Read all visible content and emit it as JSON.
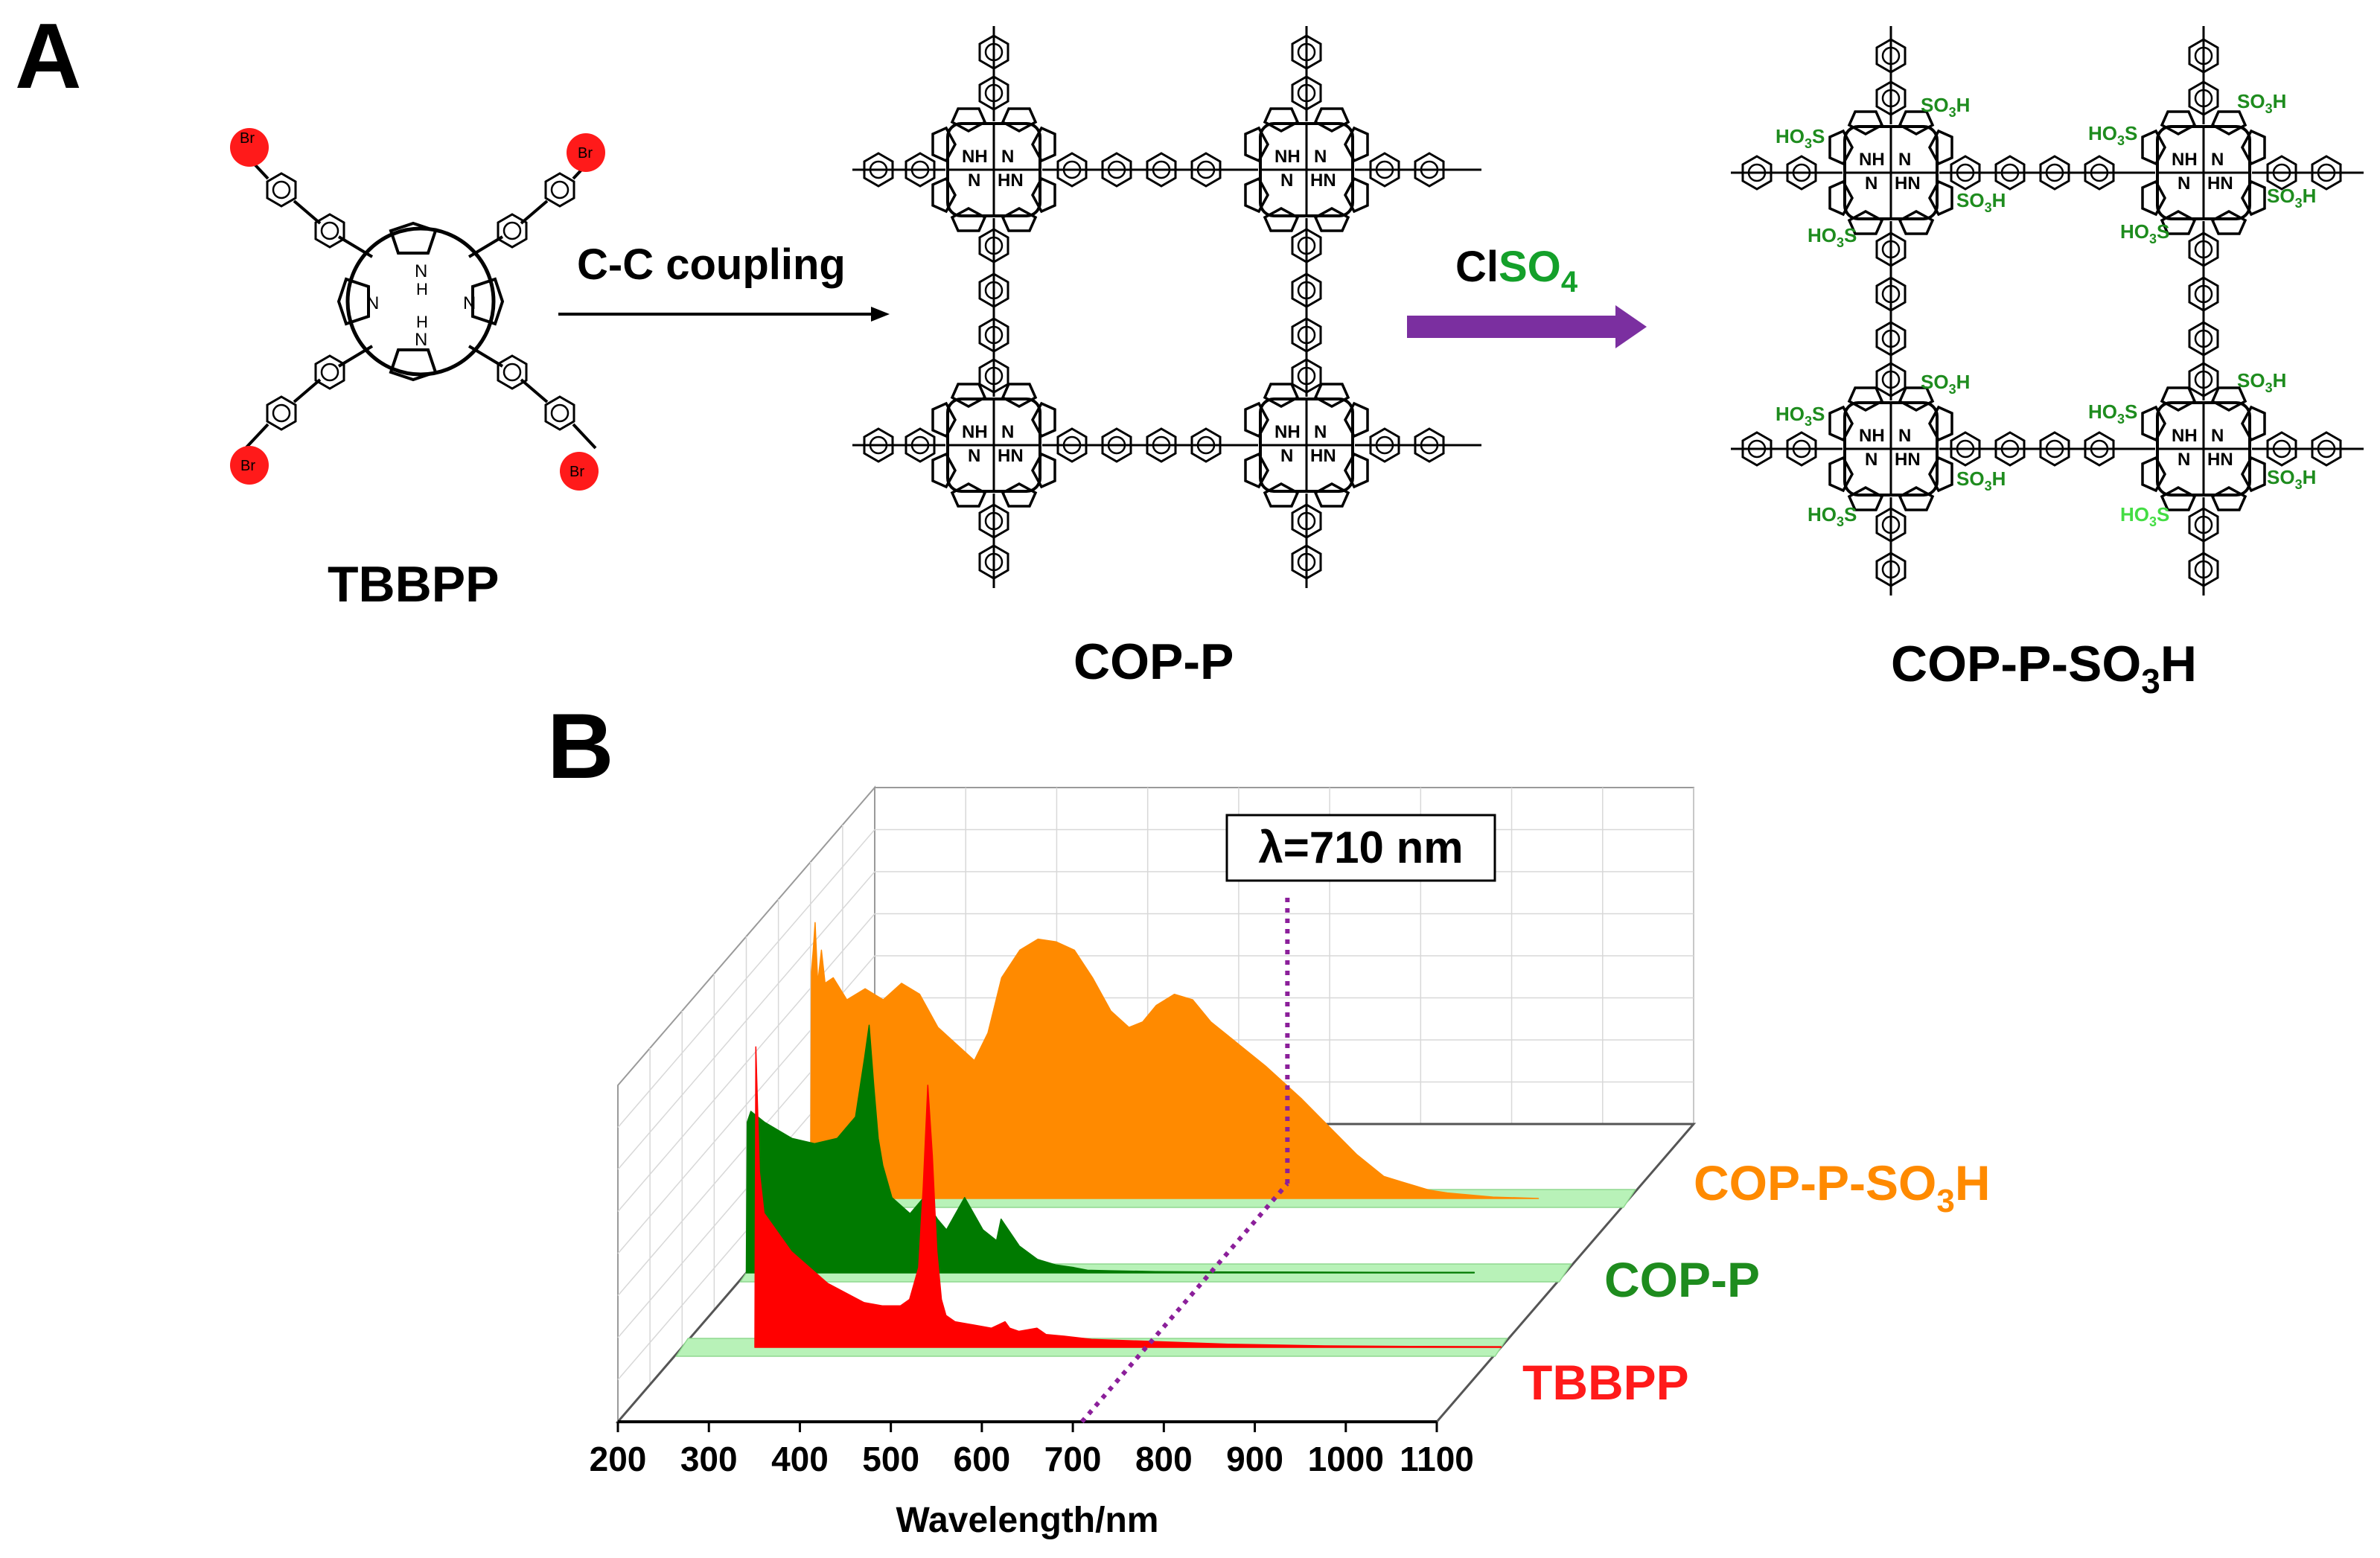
{
  "panel_a": {
    "letter": "A",
    "monomer_name": "TBBPP",
    "step1_label": "C-C coupling",
    "product1_name": "COP-P",
    "reagent_prefix": "Cl",
    "reagent_group": "SO",
    "reagent_subscript": "4",
    "product2_name_prefix": "COP-P-SO",
    "product2_name_sub": "3",
    "product2_name_suffix": "H",
    "atoms": {
      "bromine": "Br",
      "nh": "NH",
      "n": "N",
      "hn": "HN",
      "h": "H",
      "sulfonic_right": "SO",
      "sulfonic_left": "HO",
      "sub3": "3",
      "s": "S"
    }
  },
  "panel_b": {
    "letter": "B",
    "annotation": "λ=710 nm",
    "series_labels": {
      "sulfonated_prefix": "COP-P-SO",
      "sulfonated_sub": "3",
      "sulfonated_suffix": "H",
      "cop": "COP-P",
      "monomer": "TBBPP"
    }
  },
  "chart_data": {
    "type": "area",
    "title": "",
    "xlabel": "Wavelength/nm",
    "ylabel": "",
    "x_ticks": [
      200,
      300,
      400,
      500,
      600,
      700,
      800,
      900,
      1000,
      1100
    ],
    "x_tick_labels": [
      "200",
      "300",
      "400",
      "500",
      "600",
      "700",
      "800",
      "900",
      "1000",
      "1100"
    ],
    "xlim": [
      200,
      1100
    ],
    "ylim": [
      0,
      1
    ],
    "marker_wavelength": 710,
    "series": [
      {
        "name": "TBBPP",
        "color": "#ff0000",
        "x": [
          280,
          281,
          285,
          290,
          300,
          320,
          340,
          360,
          380,
          400,
          420,
          440,
          450,
          460,
          465,
          470,
          475,
          480,
          485,
          490,
          500,
          520,
          540,
          555,
          560,
          570,
          590,
          600,
          620,
          650,
          700,
          800,
          900,
          1000,
          1100
        ],
        "y": [
          0,
          0.94,
          0.55,
          0.42,
          0.38,
          0.3,
          0.25,
          0.2,
          0.17,
          0.14,
          0.13,
          0.13,
          0.15,
          0.25,
          0.5,
          0.82,
          0.6,
          0.3,
          0.15,
          0.1,
          0.08,
          0.07,
          0.06,
          0.08,
          0.06,
          0.05,
          0.06,
          0.04,
          0.035,
          0.025,
          0.02,
          0.01,
          0.005,
          0.003,
          0.002
        ]
      },
      {
        "name": "COP-P",
        "color": "#007a00",
        "x": [
          200,
          201,
          205,
          220,
          250,
          275,
          300,
          320,
          330,
          335,
          340,
          345,
          350,
          360,
          380,
          395,
          410,
          420,
          440,
          460,
          475,
          480,
          500,
          520,
          540,
          560,
          575,
          600,
          650,
          700,
          800,
          900,
          1000
        ],
        "y": [
          0,
          0.56,
          0.6,
          0.56,
          0.5,
          0.48,
          0.5,
          0.58,
          0.8,
          0.92,
          0.7,
          0.5,
          0.4,
          0.28,
          0.22,
          0.28,
          0.2,
          0.16,
          0.28,
          0.16,
          0.12,
          0.2,
          0.1,
          0.05,
          0.03,
          0.02,
          0.01,
          0.008,
          0.005,
          0.004,
          0.003,
          0.002,
          0.002
        ]
      },
      {
        "name": "COP-P-SO3H",
        "color": "#ff8a00",
        "x": [
          200,
          201,
          203,
          205,
          208,
          212,
          216,
          225,
          240,
          260,
          280,
          300,
          320,
          340,
          360,
          380,
          395,
          410,
          430,
          450,
          470,
          490,
          510,
          530,
          550,
          565,
          580,
          600,
          620,
          640,
          670,
          700,
          740,
          770,
          800,
          830,
          850,
          880,
          900,
          950,
          1000
        ],
        "y": [
          0,
          0.82,
          0.9,
          1.0,
          0.78,
          0.9,
          0.78,
          0.8,
          0.72,
          0.76,
          0.72,
          0.78,
          0.74,
          0.62,
          0.56,
          0.5,
          0.6,
          0.8,
          0.9,
          0.94,
          0.93,
          0.9,
          0.8,
          0.68,
          0.62,
          0.64,
          0.7,
          0.74,
          0.72,
          0.64,
          0.56,
          0.48,
          0.36,
          0.26,
          0.16,
          0.08,
          0.06,
          0.03,
          0.02,
          0.005,
          0
        ]
      }
    ]
  }
}
